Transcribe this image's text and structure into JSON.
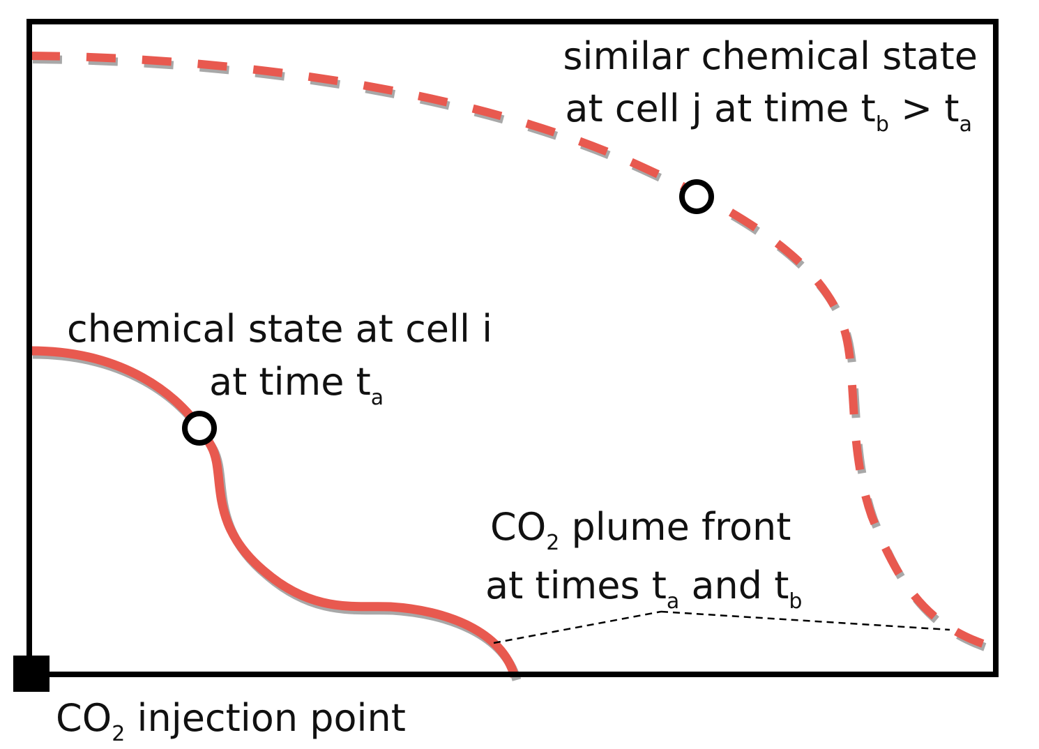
{
  "colors": {
    "plume": "#e8594f",
    "shadow": "#a8a8a8",
    "frame": "#000000",
    "text": "#111111"
  },
  "labels": {
    "similar_state": {
      "line1": "similar chemical state",
      "line2_main": "at cell j at time t",
      "line2_sub1": "b",
      "line2_mid": " > t",
      "line2_sub2": "a"
    },
    "state_i": {
      "line1": "chemical state at cell i",
      "line2_main": "at time t",
      "line2_sub": "a"
    },
    "plume_front": {
      "line1_a": "CO",
      "line1_sub": "2",
      "line1_b": " plume front",
      "line2_main": "at times t",
      "line2_sub1": "a",
      "line2_mid": " and t",
      "line2_sub2": "b"
    },
    "injection": {
      "main_a": "CO",
      "sub": "2",
      "main_b": " injection point"
    }
  },
  "icons": {
    "injection_point": "filled-square-icon",
    "cell_marker": "open-circle-icon"
  }
}
